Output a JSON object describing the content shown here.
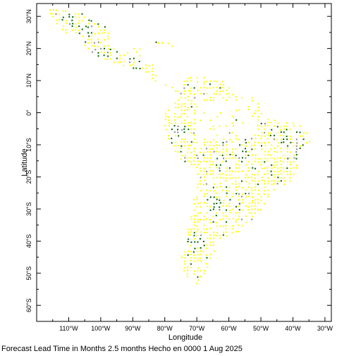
{
  "map": {
    "x_axis_title": "Longitude",
    "y_axis_title": "Latitude",
    "lon_range": [
      -120,
      -28
    ],
    "lat_range": [
      -65,
      34
    ],
    "lon_ticks": [
      {
        "value": -110,
        "label": "110°W"
      },
      {
        "value": -100,
        "label": "100°W"
      },
      {
        "value": -90,
        "label": "90°W"
      },
      {
        "value": -80,
        "label": "80°W"
      },
      {
        "value": -70,
        "label": "70°W"
      },
      {
        "value": -60,
        "label": "60°W"
      },
      {
        "value": -50,
        "label": "50°W"
      },
      {
        "value": -40,
        "label": "40°W"
      },
      {
        "value": -30,
        "label": "30°W"
      }
    ],
    "lat_ticks": [
      {
        "value": 30,
        "label": "30°N"
      },
      {
        "value": 20,
        "label": "20°N"
      },
      {
        "value": 10,
        "label": "10°N"
      },
      {
        "value": 0,
        "label": "0°"
      },
      {
        "value": -10,
        "label": "10°S"
      },
      {
        "value": -20,
        "label": "20°S"
      },
      {
        "value": -30,
        "label": "30°S"
      },
      {
        "value": -40,
        "label": "40°S"
      },
      {
        "value": -50,
        "label": "50°S"
      },
      {
        "value": -60,
        "label": "60°S"
      }
    ],
    "colors": {
      "yellow": "#ffff00",
      "green": "#006400",
      "gray": "#888888",
      "frame": "#000000"
    }
  },
  "caption": "Forecast Lead Time in Months 2.5 months Hecho en 0000 1 Aug 2025"
}
